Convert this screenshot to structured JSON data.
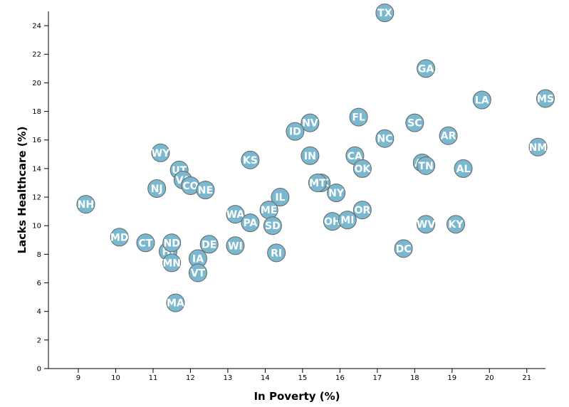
{
  "chart_data": {
    "type": "scatter",
    "xlabel": "In Poverty (%)",
    "ylabel": "Lacks Healthcare (%)",
    "xlim": [
      8.2,
      21.5
    ],
    "ylim": [
      0,
      25
    ],
    "x_ticks": [
      9,
      10,
      11,
      12,
      13,
      14,
      15,
      16,
      17,
      18,
      19,
      20,
      21
    ],
    "y_ticks": [
      0,
      2,
      4,
      6,
      8,
      10,
      12,
      14,
      16,
      18,
      20,
      22,
      24
    ],
    "grid": false,
    "marker_color": "#7ab8d0",
    "marker_edge": "#666666",
    "points": [
      {
        "label": "TX",
        "x": 17.2,
        "y": 24.9
      },
      {
        "label": "GA",
        "x": 18.3,
        "y": 21.0
      },
      {
        "label": "LA",
        "x": 19.8,
        "y": 18.8
      },
      {
        "label": "MS",
        "x": 21.5,
        "y": 18.9
      },
      {
        "label": "FL",
        "x": 16.5,
        "y": 17.6
      },
      {
        "label": "SC",
        "x": 18.0,
        "y": 17.2
      },
      {
        "label": "NV",
        "x": 15.2,
        "y": 17.2
      },
      {
        "label": "ID",
        "x": 14.8,
        "y": 16.6
      },
      {
        "label": "NC",
        "x": 17.2,
        "y": 16.1
      },
      {
        "label": "AR",
        "x": 18.9,
        "y": 16.3
      },
      {
        "label": "NM",
        "x": 21.3,
        "y": 15.5
      },
      {
        "label": "WY",
        "x": 11.2,
        "y": 15.1
      },
      {
        "label": "IN",
        "x": 15.2,
        "y": 14.9
      },
      {
        "label": "CA",
        "x": 16.4,
        "y": 14.9
      },
      {
        "label": "KS",
        "x": 13.6,
        "y": 14.6
      },
      {
        "label": "AZ",
        "x": 18.2,
        "y": 14.4
      },
      {
        "label": "TN",
        "x": 18.3,
        "y": 14.2
      },
      {
        "label": "OK",
        "x": 16.6,
        "y": 14.0
      },
      {
        "label": "AL",
        "x": 19.3,
        "y": 14.0
      },
      {
        "label": "UT",
        "x": 11.7,
        "y": 13.9
      },
      {
        "label": "VA",
        "x": 11.8,
        "y": 13.2
      },
      {
        "label": "CO",
        "x": 12.0,
        "y": 12.8
      },
      {
        "label": "NJ",
        "x": 11.1,
        "y": 12.6
      },
      {
        "label": "NE",
        "x": 12.4,
        "y": 12.5
      },
      {
        "label": "AK",
        "x": 15.5,
        "y": 13.0
      },
      {
        "label": "MT",
        "x": 15.4,
        "y": 13.0
      },
      {
        "label": "NY",
        "x": 15.9,
        "y": 12.3
      },
      {
        "label": "IL",
        "x": 14.4,
        "y": 12.0
      },
      {
        "label": "NH",
        "x": 9.2,
        "y": 11.5
      },
      {
        "label": "ME",
        "x": 14.1,
        "y": 11.1
      },
      {
        "label": "OR",
        "x": 16.6,
        "y": 11.1
      },
      {
        "label": "WA",
        "x": 13.2,
        "y": 10.8
      },
      {
        "label": "PA",
        "x": 13.6,
        "y": 10.2
      },
      {
        "label": "OH",
        "x": 15.8,
        "y": 10.3
      },
      {
        "label": "MI",
        "x": 16.2,
        "y": 10.4
      },
      {
        "label": "SD",
        "x": 14.2,
        "y": 10.0
      },
      {
        "label": "WV",
        "x": 18.3,
        "y": 10.1
      },
      {
        "label": "KY",
        "x": 19.1,
        "y": 10.1
      },
      {
        "label": "MD",
        "x": 10.1,
        "y": 9.2
      },
      {
        "label": "CT",
        "x": 10.8,
        "y": 8.8
      },
      {
        "label": "HI",
        "x": 11.4,
        "y": 8.2
      },
      {
        "label": "ND",
        "x": 11.5,
        "y": 8.8
      },
      {
        "label": "DE",
        "x": 12.5,
        "y": 8.7
      },
      {
        "label": "WI",
        "x": 13.2,
        "y": 8.6
      },
      {
        "label": "DC",
        "x": 17.7,
        "y": 8.4
      },
      {
        "label": "RI",
        "x": 14.3,
        "y": 8.1
      },
      {
        "label": "IA",
        "x": 12.2,
        "y": 7.7
      },
      {
        "label": "MN",
        "x": 11.5,
        "y": 7.4
      },
      {
        "label": "VT",
        "x": 12.2,
        "y": 6.7
      },
      {
        "label": "MA",
        "x": 11.6,
        "y": 4.6
      }
    ]
  }
}
